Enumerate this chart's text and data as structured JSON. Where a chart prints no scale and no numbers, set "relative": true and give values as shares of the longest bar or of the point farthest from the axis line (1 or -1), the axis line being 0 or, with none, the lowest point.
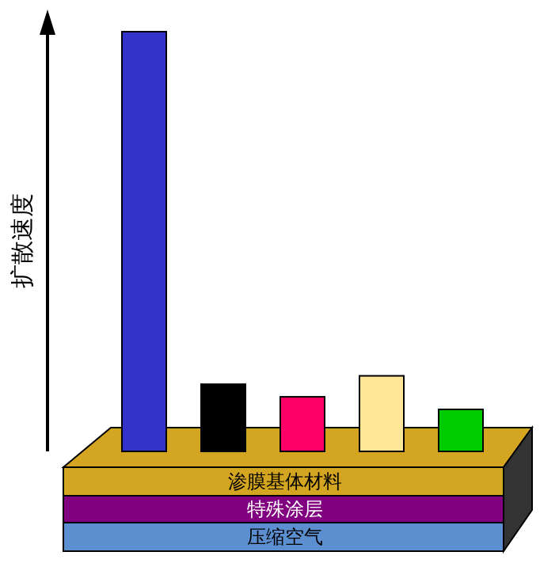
{
  "chart_data": {
    "type": "bar",
    "relative": true,
    "ylabel": "扩散速度",
    "categories": [
      null,
      null,
      null,
      null,
      null
    ],
    "values": [
      1,
      0.16,
      0.13,
      0.18,
      0.1
    ],
    "colors": [
      "#3333cc",
      "#000000",
      "#ff0066",
      "#ffe699",
      "#00cc00"
    ],
    "annotations": [
      "渗膜基体材料",
      "特殊涂层",
      "压缩空气"
    ]
  }
}
